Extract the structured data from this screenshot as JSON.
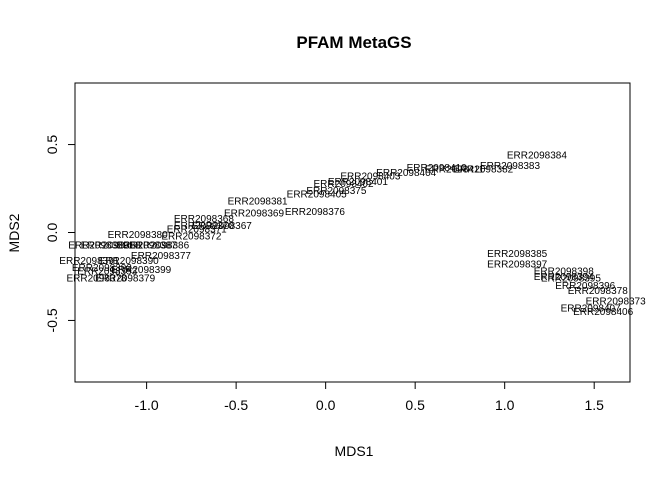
{
  "chart_data": {
    "type": "scatter",
    "title": "PFAM MetaGS",
    "xlabel": "MDS1",
    "ylabel": "MDS2",
    "xlim": [
      -1.4,
      1.7
    ],
    "ylim": [
      -0.85,
      0.85
    ],
    "xticks": [
      -1.0,
      -0.5,
      0.0,
      0.5,
      1.0,
      1.5
    ],
    "xtick_labels": [
      "-1.0",
      "-0.5",
      "0.0",
      "0.5",
      "1.0",
      "1.5"
    ],
    "yticks": [
      -0.5,
      0.0,
      0.5
    ],
    "ytick_labels": [
      "-0.5",
      "0.0",
      "0.5"
    ],
    "grid": false,
    "marker": "text-label",
    "points": [
      {
        "label": "ERR2098384",
        "x": 1.18,
        "y": 0.44
      },
      {
        "label": "ERR2098383",
        "x": 1.03,
        "y": 0.38
      },
      {
        "label": "ERR2098382",
        "x": 0.88,
        "y": 0.36
      },
      {
        "label": "ERR2098411",
        "x": 0.72,
        "y": 0.36
      },
      {
        "label": "ERR2098410",
        "x": 0.62,
        "y": 0.37
      },
      {
        "label": "ERR2098404",
        "x": 0.45,
        "y": 0.34
      },
      {
        "label": "ERR2098403",
        "x": 0.25,
        "y": 0.32
      },
      {
        "label": "ERR2098401",
        "x": 0.18,
        "y": 0.29
      },
      {
        "label": "ERR2098402",
        "x": 0.1,
        "y": 0.28
      },
      {
        "label": "ERR2098375",
        "x": 0.06,
        "y": 0.24
      },
      {
        "label": "ERR2098405",
        "x": -0.05,
        "y": 0.22
      },
      {
        "label": "ERR2098381",
        "x": -0.38,
        "y": 0.18
      },
      {
        "label": "ERR2098369",
        "x": -0.4,
        "y": 0.11
      },
      {
        "label": "ERR2098376",
        "x": -0.06,
        "y": 0.12
      },
      {
        "label": "ERR2098368",
        "x": -0.68,
        "y": 0.08
      },
      {
        "label": "ERR2098367",
        "x": -0.58,
        "y": 0.04
      },
      {
        "label": "ERR2098370",
        "x": -0.68,
        "y": 0.04
      },
      {
        "label": "ERR2098371",
        "x": -0.72,
        "y": 0.02
      },
      {
        "label": "ERR2098372",
        "x": -0.75,
        "y": -0.02
      },
      {
        "label": "ERR2098380",
        "x": -1.05,
        "y": -0.01
      },
      {
        "label": "ERR2098386",
        "x": -0.93,
        "y": -0.07
      },
      {
        "label": "ERR2098387",
        "x": -1.0,
        "y": -0.07
      },
      {
        "label": "ERR2098388",
        "x": -1.2,
        "y": -0.07
      },
      {
        "label": "ERR2098389",
        "x": -1.27,
        "y": -0.07
      },
      {
        "label": "ERR2098377",
        "x": -0.92,
        "y": -0.13
      },
      {
        "label": "ERR2098390",
        "x": -1.1,
        "y": -0.16
      },
      {
        "label": "ERR2098391",
        "x": -1.32,
        "y": -0.16
      },
      {
        "label": "ERR2098392",
        "x": -1.25,
        "y": -0.2
      },
      {
        "label": "ERR2098399",
        "x": -1.03,
        "y": -0.21
      },
      {
        "label": "ERR2098393",
        "x": -1.22,
        "y": -0.22
      },
      {
        "label": "ERR2098379",
        "x": -1.12,
        "y": -0.26
      },
      {
        "label": "ERR2098378",
        "x": -1.28,
        "y": -0.26
      },
      {
        "label": "ERR2098385",
        "x": 1.07,
        "y": -0.12
      },
      {
        "label": "ERR2098397",
        "x": 1.07,
        "y": -0.18
      },
      {
        "label": "ERR2098398",
        "x": 1.33,
        "y": -0.22
      },
      {
        "label": "ERR2098394",
        "x": 1.33,
        "y": -0.25
      },
      {
        "label": "ERR2098395",
        "x": 1.37,
        "y": -0.26
      },
      {
        "label": "ERR2098396",
        "x": 1.45,
        "y": -0.3
      },
      {
        "label": "ERR2098378",
        "x": 1.52,
        "y": -0.33
      },
      {
        "label": "ERR2098373",
        "x": 1.62,
        "y": -0.39
      },
      {
        "label": "ERR2098407",
        "x": 1.48,
        "y": -0.43
      },
      {
        "label": "ERR2098406",
        "x": 1.55,
        "y": -0.45
      }
    ]
  }
}
